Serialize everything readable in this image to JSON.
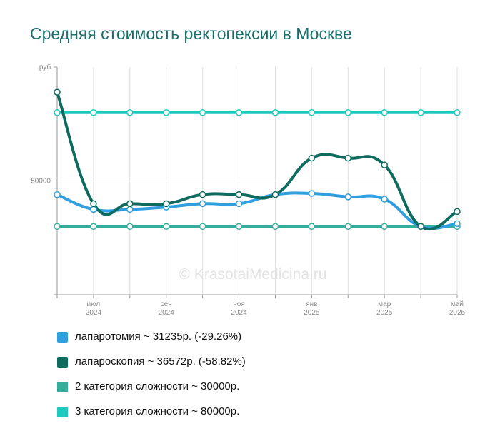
{
  "title": "Средняя стоимость ректопексии в Москве",
  "watermark": "© KrasotaiMedicina.ru",
  "chart_data": {
    "type": "line",
    "title": "Средняя стоимость ректопексии в Москве",
    "ylabel": "руб.",
    "xlabel": "",
    "ylim": [
      0,
      100000
    ],
    "y_ticks": [
      {
        "value": 50000,
        "label": "50000"
      }
    ],
    "x_ticks": [
      {
        "month": "июл",
        "year": "2024"
      },
      {
        "month": "сен",
        "year": "2024"
      },
      {
        "month": "ноя",
        "year": "2024"
      },
      {
        "month": "янв",
        "year": "2025"
      },
      {
        "month": "мар",
        "year": "2025"
      },
      {
        "month": "май",
        "year": "2025"
      }
    ],
    "x": [
      "2024-06",
      "2024-07",
      "2024-08",
      "2024-09",
      "2024-10",
      "2024-11",
      "2024-12",
      "2025-01",
      "2025-02",
      "2025-03",
      "2025-04",
      "2025-05"
    ],
    "grid": true,
    "legend_position": "bottom",
    "series": [
      {
        "name": "лапаротомия ~ 31235р. (-29.26%)",
        "color": "#2f9fe0",
        "values": [
          44000,
          37500,
          37500,
          38500,
          40000,
          40000,
          44000,
          44500,
          43000,
          42000,
          30000,
          31235
        ]
      },
      {
        "name": "лапароскопия ~ 36572р. (-58.82%)",
        "color": "#0f6b5e",
        "values": [
          89000,
          40000,
          40000,
          40000,
          44000,
          44000,
          44000,
          60000,
          60000,
          57000,
          30000,
          36572
        ]
      },
      {
        "name": "2 категория сложности ~ 30000р.",
        "color": "#35ad9b",
        "values": [
          30000,
          30000,
          30000,
          30000,
          30000,
          30000,
          30000,
          30000,
          30000,
          30000,
          30000,
          30000
        ]
      },
      {
        "name": "3 категория сложности ~ 80000р.",
        "color": "#1ec9bd",
        "values": [
          80000,
          80000,
          80000,
          80000,
          80000,
          80000,
          80000,
          80000,
          80000,
          80000,
          80000,
          80000
        ]
      }
    ]
  }
}
